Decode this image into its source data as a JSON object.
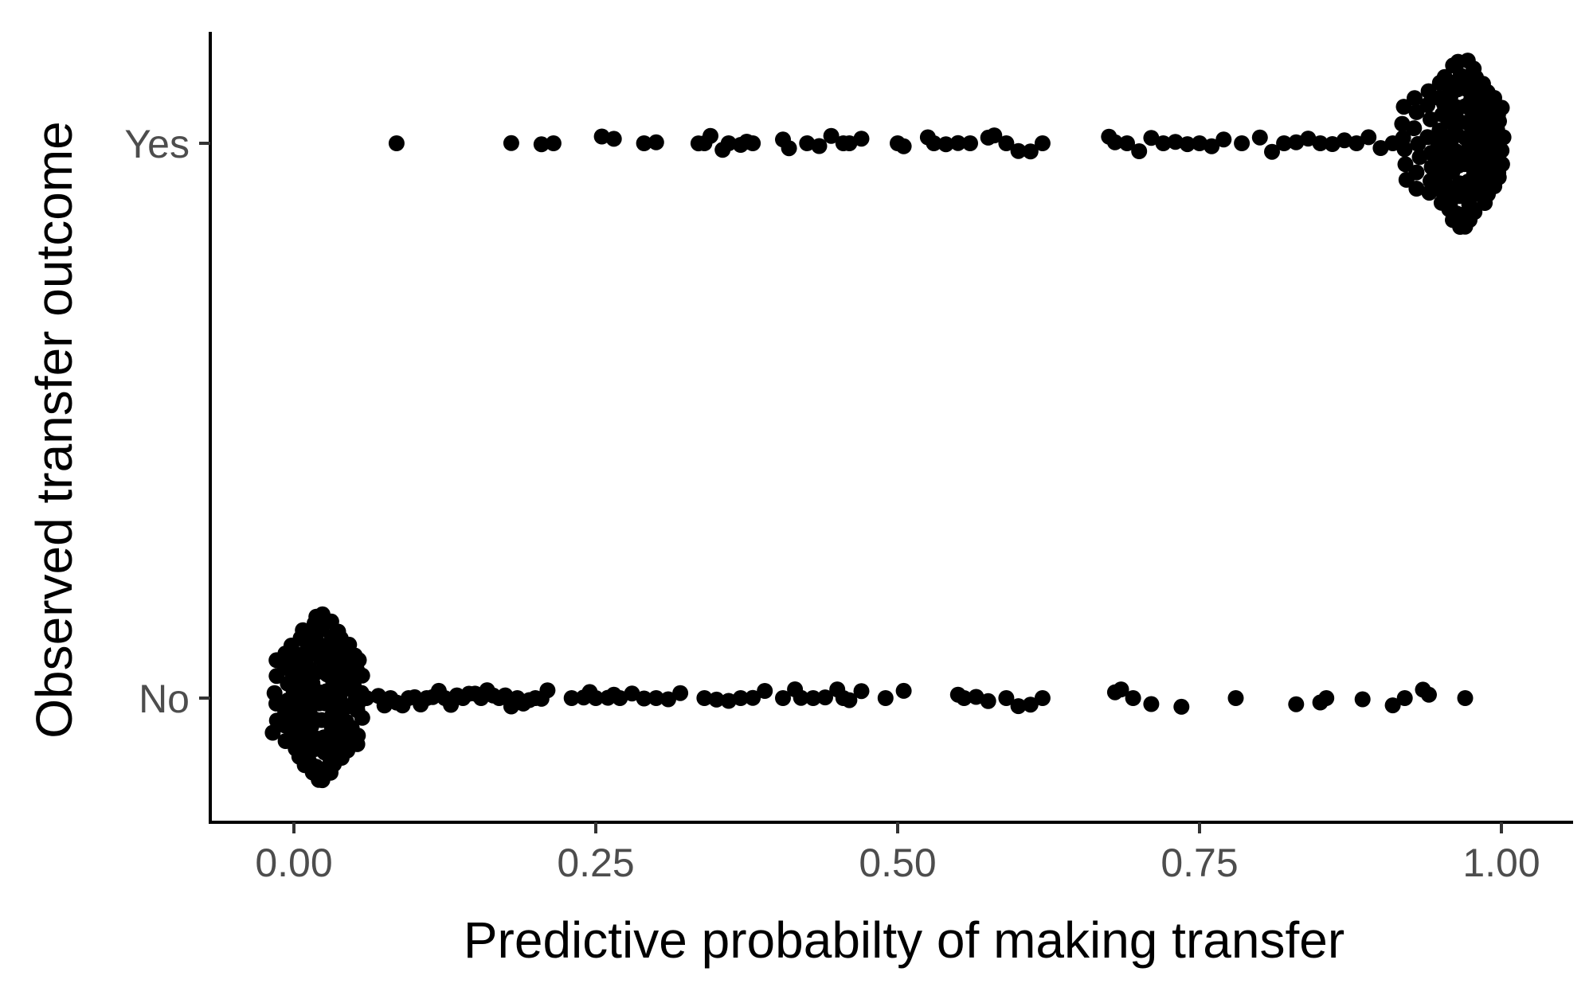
{
  "chart_data": {
    "type": "scatter",
    "subtype": "beeswarm",
    "title": "",
    "xlabel": "Predictive probabilty of making transfer",
    "ylabel": "Observed transfer outcome",
    "xlim": [
      -0.07,
      1.06
    ],
    "x_ticks": [
      0,
      0.25,
      0.5,
      0.75,
      1
    ],
    "x_tick_labels": [
      "0.00",
      "0.25",
      "0.50",
      "0.75",
      "1.00"
    ],
    "categories": [
      "No",
      "Yes"
    ],
    "grid": false,
    "legend": "none",
    "point_color": "#000000",
    "series": [
      {
        "category": "Yes",
        "dense_values": [
          0.92,
          0.93,
          0.94,
          0.95,
          0.955,
          0.96,
          0.965,
          0.97,
          0.975,
          0.98,
          0.985,
          0.99,
          0.995,
          1.0
        ],
        "values": [
          0.085,
          0.18,
          0.205,
          0.215,
          0.255,
          0.265,
          0.29,
          0.3,
          0.335,
          0.34,
          0.345,
          0.355,
          0.36,
          0.37,
          0.375,
          0.38,
          0.405,
          0.41,
          0.425,
          0.435,
          0.445,
          0.455,
          0.46,
          0.47,
          0.5,
          0.505,
          0.525,
          0.53,
          0.54,
          0.55,
          0.56,
          0.575,
          0.58,
          0.59,
          0.6,
          0.61,
          0.62,
          0.675,
          0.68,
          0.69,
          0.7,
          0.71,
          0.72,
          0.73,
          0.74,
          0.75,
          0.76,
          0.77,
          0.785,
          0.8,
          0.81,
          0.82,
          0.83,
          0.84,
          0.85,
          0.86,
          0.87,
          0.88,
          0.89,
          0.9,
          0.91
        ]
      },
      {
        "category": "No",
        "dense_values": [
          -0.015,
          -0.005,
          0.0,
          0.005,
          0.01,
          0.015,
          0.02,
          0.025,
          0.03,
          0.035,
          0.04,
          0.045,
          0.05,
          0.055
        ],
        "values": [
          0.06,
          0.07,
          0.075,
          0.08,
          0.085,
          0.09,
          0.095,
          0.1,
          0.105,
          0.11,
          0.115,
          0.12,
          0.125,
          0.13,
          0.135,
          0.14,
          0.145,
          0.15,
          0.155,
          0.16,
          0.165,
          0.17,
          0.175,
          0.18,
          0.185,
          0.19,
          0.195,
          0.2,
          0.205,
          0.21,
          0.23,
          0.24,
          0.245,
          0.25,
          0.26,
          0.265,
          0.27,
          0.28,
          0.29,
          0.3,
          0.31,
          0.32,
          0.34,
          0.35,
          0.36,
          0.37,
          0.38,
          0.39,
          0.405,
          0.415,
          0.42,
          0.43,
          0.44,
          0.45,
          0.455,
          0.46,
          0.47,
          0.49,
          0.505,
          0.55,
          0.555,
          0.565,
          0.575,
          0.59,
          0.6,
          0.61,
          0.62,
          0.68,
          0.685,
          0.695,
          0.71,
          0.735,
          0.78,
          0.83,
          0.85,
          0.855,
          0.885,
          0.91,
          0.92,
          0.935,
          0.94,
          0.97
        ]
      }
    ]
  }
}
